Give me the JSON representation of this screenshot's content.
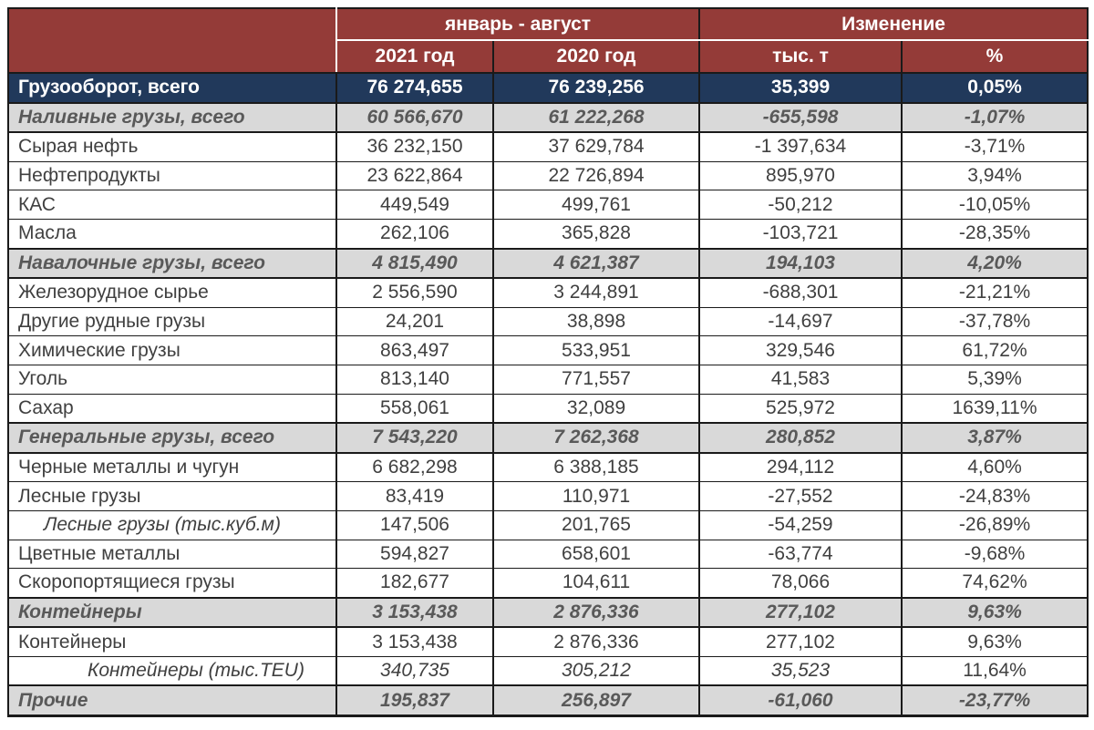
{
  "colors": {
    "header_bg": "#943b38",
    "grand_total_bg": "#21395b",
    "section_row_bg": "#d9d9d9",
    "body_text": "#404040",
    "section_text": "#595959",
    "header_text": "#ffffff",
    "grid_border": "#1a1a1a"
  },
  "chart_data": {
    "type": "table",
    "title": "",
    "column_groups": [
      {
        "label": "январь - август",
        "span": 2
      },
      {
        "label": "Изменение",
        "span": 2
      }
    ],
    "columns": [
      "2021 год",
      "2020 год",
      "тыс. т",
      "%"
    ],
    "rows": [
      {
        "label": "Грузооборот, всего",
        "values": [
          "76 274,655",
          "76 239,256",
          "35,399",
          "0,05%"
        ],
        "style": "grand-total"
      },
      {
        "label": "Наливные грузы, всего",
        "values": [
          "60 566,670",
          "61 222,268",
          "-655,598",
          "-1,07%"
        ],
        "style": "section"
      },
      {
        "label": "Сырая нефть",
        "values": [
          "36 232,150",
          "37 629,784",
          "-1 397,634",
          "-3,71%"
        ],
        "style": "regular"
      },
      {
        "label": "Нефтепродукты",
        "values": [
          "23 622,864",
          "22 726,894",
          "895,970",
          "3,94%"
        ],
        "style": "regular"
      },
      {
        "label": "КАС",
        "values": [
          "449,549",
          "499,761",
          "-50,212",
          "-10,05%"
        ],
        "style": "regular"
      },
      {
        "label": "Масла",
        "values": [
          "262,106",
          "365,828",
          "-103,721",
          "-28,35%"
        ],
        "style": "regular"
      },
      {
        "label": "Навалочные грузы, всего",
        "values": [
          "4 815,490",
          "4 621,387",
          "194,103",
          "4,20%"
        ],
        "style": "section"
      },
      {
        "label": "Железорудное сырье",
        "values": [
          "2 556,590",
          "3 244,891",
          "-688,301",
          "-21,21%"
        ],
        "style": "regular"
      },
      {
        "label": "Другие рудные грузы",
        "values": [
          "24,201",
          "38,898",
          "-14,697",
          "-37,78%"
        ],
        "style": "regular"
      },
      {
        "label": "Химические грузы",
        "values": [
          "863,497",
          "533,951",
          "329,546",
          "61,72%"
        ],
        "style": "regular"
      },
      {
        "label": "Уголь",
        "values": [
          "813,140",
          "771,557",
          "41,583",
          "5,39%"
        ],
        "style": "regular"
      },
      {
        "label": "Сахар",
        "values": [
          "558,061",
          "32,089",
          "525,972",
          "1639,11%"
        ],
        "style": "regular"
      },
      {
        "label": "Генеральные грузы, всего",
        "values": [
          "7 543,220",
          "7 262,368",
          "280,852",
          "3,87%"
        ],
        "style": "section"
      },
      {
        "label": "Черные металлы и чугун",
        "values": [
          "6 682,298",
          "6 388,185",
          "294,112",
          "4,60%"
        ],
        "style": "regular"
      },
      {
        "label": "Лесные грузы",
        "values": [
          "83,419",
          "110,971",
          "-27,552",
          "-24,83%"
        ],
        "style": "regular"
      },
      {
        "label": "Лесные грузы (тыс.куб.м)",
        "values": [
          "147,506",
          "201,765",
          "-54,259",
          "-26,89%"
        ],
        "style": "sub-note"
      },
      {
        "label": "Цветные металлы",
        "values": [
          "594,827",
          "658,601",
          "-63,774",
          "-9,68%"
        ],
        "style": "regular"
      },
      {
        "label": "Скоропортящиеся грузы",
        "values": [
          "182,677",
          "104,611",
          "78,066",
          "74,62%"
        ],
        "style": "regular"
      },
      {
        "label": "Контейнеры",
        "values": [
          "3 153,438",
          "2 876,336",
          "277,102",
          "9,63%"
        ],
        "style": "section"
      },
      {
        "label": "Контейнеры",
        "values": [
          "3 153,438",
          "2 876,336",
          "277,102",
          "9,63%"
        ],
        "style": "regular"
      },
      {
        "label": "Контейнеры (тыс.TEU)",
        "values": [
          "340,735",
          "305,212",
          "35,523",
          "11,64%"
        ],
        "style": "sub-note-italic"
      },
      {
        "label": "Прочие",
        "values": [
          "195,837",
          "256,897",
          "-61,060",
          "-23,77%"
        ],
        "style": "section"
      }
    ]
  }
}
